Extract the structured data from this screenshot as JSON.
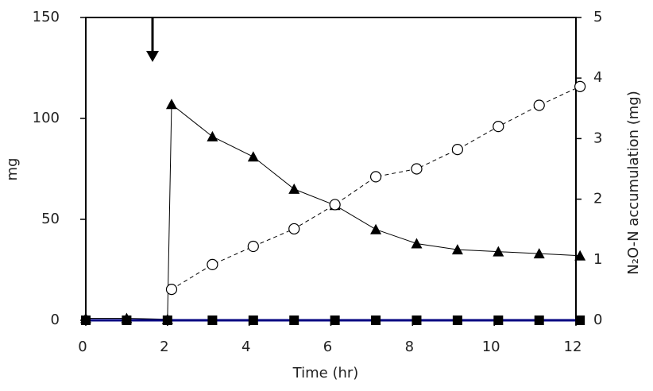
{
  "chart_data": {
    "type": "line",
    "x_label": "Time (hr)",
    "y_label": "mg",
    "y2_label": "N₂O-N accumulation (mg)",
    "xlim": [
      0,
      12
    ],
    "xticks": [
      0,
      2,
      4,
      6,
      8,
      10,
      12
    ],
    "ylim": [
      0,
      150
    ],
    "yticks": [
      0,
      50,
      100,
      150
    ],
    "y2lim": [
      0,
      5
    ],
    "y2ticks": [
      0,
      1,
      2,
      3,
      4,
      5
    ],
    "series": [
      {
        "color": "#000000",
        "marker": "triangle",
        "dash": false,
        "x": [
          0,
          1,
          2,
          2.1,
          3.1,
          4.1,
          5.1,
          6.1,
          7.1,
          8.1,
          9.1,
          10.1,
          11.1,
          12.1
        ],
        "values": [
          1,
          1,
          0.5,
          107,
          91,
          81,
          65,
          57,
          45,
          38,
          35,
          34,
          33,
          32
        ]
      },
      {
        "color": "#000000",
        "marker": "circle",
        "dash": true,
        "axis": "y2",
        "x": [
          2.1,
          3.1,
          4.1,
          5.1,
          6.1,
          7.1,
          8.1,
          9.1,
          10.1,
          11.1,
          12.1
        ],
        "values": [
          0.51,
          0.92,
          1.22,
          1.51,
          1.91,
          2.37,
          2.5,
          2.82,
          3.2,
          3.55,
          3.86
        ]
      },
      {
        "color": "#000080",
        "marker_color": "#000000",
        "marker": "square",
        "dash": false,
        "width": 3,
        "x": [
          0,
          1,
          2,
          3.1,
          4.1,
          5.1,
          6.1,
          7.1,
          8.1,
          9.1,
          10.1,
          11.1,
          12.1
        ],
        "values": [
          0,
          0,
          0,
          0,
          0,
          0,
          0,
          0,
          0,
          0,
          0,
          0,
          0
        ]
      }
    ]
  }
}
